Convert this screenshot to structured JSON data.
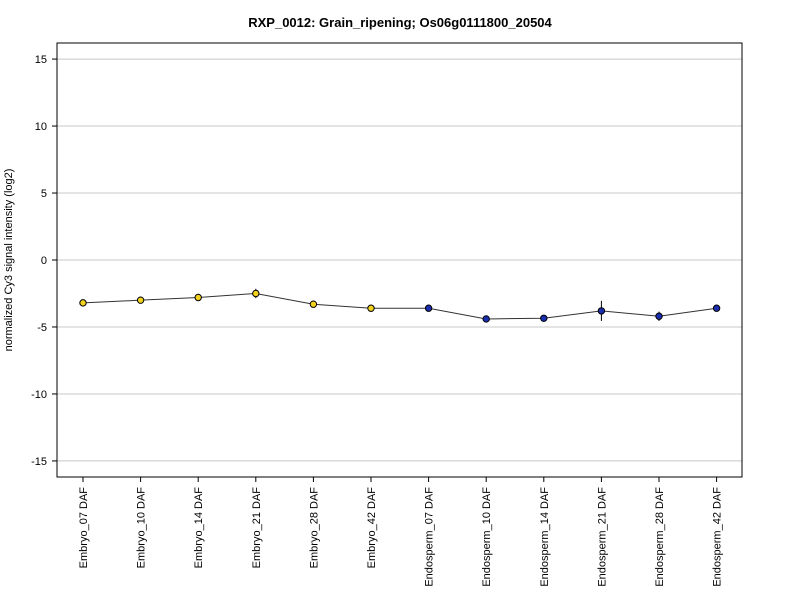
{
  "chart_data": {
    "type": "line",
    "title": "RXP_0012: Grain_ripening; Os06g0111800_20504",
    "xlabel": "",
    "ylabel": "normalized Cy3 signal intensity (log2)",
    "ylim": [
      -16.2,
      16.2
    ],
    "yticks": [
      15,
      10,
      5,
      0,
      -5,
      -10,
      -15
    ],
    "grid": true,
    "categories": [
      "Embryo_07 DAF",
      "Embryo_10 DAF",
      "Embryo_14 DAF",
      "Embryo_21 DAF",
      "Embryo_28 DAF",
      "Embryo_42 DAF",
      "Endosperm_07 DAF",
      "Endosperm_10 DAF",
      "Endosperm_14 DAF",
      "Endosperm_21 DAF",
      "Endosperm_28 DAF",
      "Endosperm_42 DAF"
    ],
    "series": [
      {
        "values": [
          -3.2,
          -3.0,
          -2.8,
          -2.5,
          -3.3,
          -3.6,
          -3.6,
          -4.4,
          -4.35,
          -3.8,
          -4.2,
          -3.6
        ],
        "error": [
          0.15,
          0.15,
          0.15,
          0.35,
          0.15,
          0.25,
          0.1,
          0.1,
          0.1,
          0.75,
          0.35,
          0.1
        ],
        "point_colors": [
          "#f2d21c",
          "#f2d21c",
          "#f2d21c",
          "#f2d21c",
          "#f2d21c",
          "#f2d21c",
          "#1a2fb0",
          "#1a2fb0",
          "#1a2fb0",
          "#1a2fb0",
          "#1a2fb0",
          "#1a2fb0"
        ]
      }
    ],
    "colors": {
      "line": "#333333",
      "grid": "#c8c8c8",
      "marker_edge": "#000000"
    }
  }
}
